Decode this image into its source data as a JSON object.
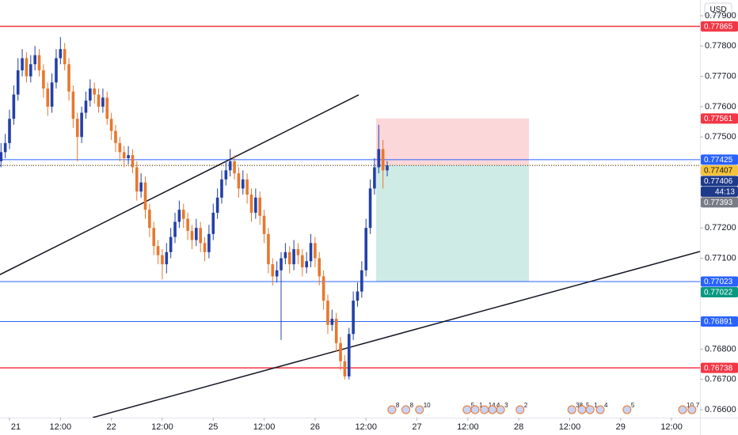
{
  "chart_data": {
    "type": "candlestick",
    "currency": "USD",
    "up_color": "#2340a8",
    "down_color": "#e8772e",
    "x": [
      -2,
      -1,
      0,
      1,
      2,
      3,
      4,
      5,
      6,
      7,
      8,
      9,
      10,
      11,
      12,
      13,
      14,
      15,
      16,
      17,
      18,
      19,
      20,
      21,
      22,
      23,
      24,
      25,
      26,
      27,
      28,
      29,
      30,
      31,
      32,
      33,
      34,
      35,
      36,
      37,
      38,
      39,
      40,
      41,
      42,
      43,
      44,
      45,
      46,
      47,
      48,
      49,
      50,
      51,
      52,
      53,
      54,
      55,
      56,
      57,
      58,
      59,
      60,
      61,
      62,
      63,
      64,
      65,
      66,
      67,
      68,
      69,
      70,
      71,
      72,
      73,
      74,
      75,
      76,
      77,
      78,
      79,
      80,
      81,
      82,
      83,
      84,
      85,
      86,
      87,
      88,
      89
    ],
    "open": [
      0.7742,
      0.7745,
      0.7748,
      0.7756,
      0.7764,
      0.7772,
      0.7776,
      0.777,
      0.7774,
      0.7777,
      0.7772,
      0.7766,
      0.776,
      0.7768,
      0.7776,
      0.7779,
      0.7774,
      0.7765,
      0.7756,
      0.775,
      0.7758,
      0.7762,
      0.7766,
      0.7764,
      0.776,
      0.7763,
      0.7756,
      0.7752,
      0.7748,
      0.7745,
      0.7743,
      0.7744,
      0.774,
      0.7732,
      0.7735,
      0.7726,
      0.772,
      0.7714,
      0.7711,
      0.7708,
      0.7712,
      0.7717,
      0.7722,
      0.7726,
      0.7723,
      0.7719,
      0.7716,
      0.772,
      0.7715,
      0.7712,
      0.7718,
      0.7725,
      0.773,
      0.7736,
      0.7739,
      0.7742,
      0.7738,
      0.7733,
      0.7736,
      0.7731,
      0.7725,
      0.773,
      0.7724,
      0.7718,
      0.7708,
      0.7704,
      0.7706,
      0.771,
      0.7712,
      0.7708,
      0.7713,
      0.7711,
      0.7707,
      0.7709,
      0.7715,
      0.771,
      0.7704,
      0.7696,
      0.7688,
      0.769,
      0.7682,
      0.7676,
      0.7671,
      0.7685,
      0.7696,
      0.7699,
      0.7706,
      0.772,
      0.7733,
      0.774,
      0.7746,
      0.7739
    ],
    "high": [
      0.7748,
      0.7751,
      0.7759,
      0.7767,
      0.7776,
      0.7779,
      0.7778,
      0.7777,
      0.778,
      0.7779,
      0.7774,
      0.7768,
      0.7771,
      0.7779,
      0.7783,
      0.7781,
      0.7776,
      0.7767,
      0.7758,
      0.776,
      0.7765,
      0.7769,
      0.7768,
      0.7766,
      0.7766,
      0.7765,
      0.7758,
      0.7754,
      0.775,
      0.7747,
      0.7747,
      0.7746,
      0.7742,
      0.7738,
      0.7737,
      0.7728,
      0.7722,
      0.7716,
      0.7713,
      0.7715,
      0.772,
      0.7725,
      0.7729,
      0.7728,
      0.7725,
      0.7721,
      0.7723,
      0.7722,
      0.7717,
      0.7721,
      0.7728,
      0.7733,
      0.7739,
      0.7742,
      0.7746,
      0.7744,
      0.774,
      0.7739,
      0.7738,
      0.7733,
      0.7733,
      0.7732,
      0.7726,
      0.772,
      0.771,
      0.7709,
      0.7712,
      0.7715,
      0.7714,
      0.7716,
      0.7715,
      0.7713,
      0.7712,
      0.7718,
      0.7717,
      0.7712,
      0.7706,
      0.7698,
      0.7693,
      0.7692,
      0.7684,
      0.7678,
      0.7687,
      0.7699,
      0.7702,
      0.7709,
      0.7723,
      0.7736,
      0.7743,
      0.7754,
      0.7749,
      0.7742
    ],
    "low": [
      0.774,
      0.7743,
      0.7746,
      0.7754,
      0.7762,
      0.777,
      0.7768,
      0.7768,
      0.7772,
      0.777,
      0.7763,
      0.7757,
      0.7758,
      0.7766,
      0.7774,
      0.7772,
      0.7762,
      0.7753,
      0.7742,
      0.7748,
      0.7756,
      0.776,
      0.7761,
      0.7758,
      0.7758,
      0.7754,
      0.7749,
      0.7745,
      0.7742,
      0.774,
      0.7741,
      0.7738,
      0.7729,
      0.773,
      0.7723,
      0.7717,
      0.7711,
      0.7708,
      0.7703,
      0.7705,
      0.771,
      0.7715,
      0.772,
      0.772,
      0.7716,
      0.7713,
      0.7714,
      0.7712,
      0.7709,
      0.771,
      0.7716,
      0.7723,
      0.7728,
      0.7734,
      0.7737,
      0.7736,
      0.773,
      0.7731,
      0.7728,
      0.7722,
      0.7723,
      0.7721,
      0.7715,
      0.7705,
      0.7701,
      0.7702,
      0.7683,
      0.7708,
      0.7705,
      0.7706,
      0.7708,
      0.7704,
      0.7705,
      0.7707,
      0.7707,
      0.7701,
      0.7693,
      0.7685,
      0.7686,
      0.7679,
      0.7673,
      0.767,
      0.767,
      0.7683,
      0.7694,
      0.7697,
      0.7704,
      0.7718,
      0.7731,
      0.7738,
      0.7733,
      0.7737
    ],
    "close": [
      0.7745,
      0.7748,
      0.7756,
      0.7764,
      0.7772,
      0.7776,
      0.777,
      0.7774,
      0.7777,
      0.7772,
      0.7766,
      0.776,
      0.7768,
      0.7776,
      0.7779,
      0.7774,
      0.7765,
      0.7756,
      0.775,
      0.7758,
      0.7762,
      0.7766,
      0.7764,
      0.776,
      0.7763,
      0.7756,
      0.7752,
      0.7748,
      0.7745,
      0.7743,
      0.7744,
      0.774,
      0.7732,
      0.7735,
      0.7726,
      0.772,
      0.7714,
      0.7711,
      0.7708,
      0.7712,
      0.7717,
      0.7722,
      0.7726,
      0.7723,
      0.7719,
      0.7716,
      0.772,
      0.7715,
      0.7712,
      0.7718,
      0.7725,
      0.773,
      0.7736,
      0.7739,
      0.7742,
      0.7738,
      0.7733,
      0.7736,
      0.7731,
      0.7725,
      0.773,
      0.7724,
      0.7718,
      0.7708,
      0.7704,
      0.7706,
      0.771,
      0.7712,
      0.7708,
      0.7713,
      0.7711,
      0.7707,
      0.7709,
      0.7715,
      0.771,
      0.7704,
      0.7696,
      0.7688,
      0.769,
      0.7682,
      0.7676,
      0.7671,
      0.7685,
      0.7696,
      0.7699,
      0.7706,
      0.772,
      0.7733,
      0.774,
      0.7746,
      0.7739,
      0.77406
    ],
    "xlim": [
      -2.24,
      162.7
    ],
    "ylim": [
      0.76574,
      0.77952
    ],
    "xticks": [
      {
        "value": 0,
        "label": "21"
      },
      {
        "value": 12,
        "label": "12:00"
      },
      {
        "value": 24,
        "label": "22"
      },
      {
        "value": 36,
        "label": "12:00"
      },
      {
        "value": 48,
        "label": "25"
      },
      {
        "value": 60,
        "label": "12:00"
      },
      {
        "value": 72,
        "label": "26"
      },
      {
        "value": 84,
        "label": "12:00"
      },
      {
        "value": 96,
        "label": "27"
      },
      {
        "value": 108,
        "label": "12:00"
      },
      {
        "value": 120,
        "label": "28"
      },
      {
        "value": 132,
        "label": "12:00"
      },
      {
        "value": 144,
        "label": "29"
      },
      {
        "value": 156,
        "label": "12:00"
      }
    ],
    "yticks": [
      {
        "value": 0.779,
        "label": "0.77900"
      },
      {
        "value": 0.778,
        "label": "0.77800"
      },
      {
        "value": 0.777,
        "label": "0.77700"
      },
      {
        "value": 0.776,
        "label": "0.77600"
      },
      {
        "value": 0.775,
        "label": "0.77500"
      },
      {
        "value": 0.772,
        "label": "0.77200"
      },
      {
        "value": 0.771,
        "label": "0.77100"
      },
      {
        "value": 0.768,
        "label": "0.76800"
      },
      {
        "value": 0.767,
        "label": "0.76700"
      },
      {
        "value": 0.766,
        "label": "0.76600"
      }
    ],
    "hlines": [
      {
        "value": 0.77865,
        "color": "#f23645"
      },
      {
        "value": 0.77425,
        "color": "#2962ff"
      },
      {
        "value": 0.77023,
        "color": "#2962ff"
      },
      {
        "value": 0.76891,
        "color": "#2962ff"
      },
      {
        "value": 0.76738,
        "color": "#f23645"
      }
    ],
    "position": {
      "x": [
        86.4,
        122.4
      ],
      "entry": 0.77407,
      "stop": 0.77561,
      "target": 0.77022,
      "entry_color": "#f5c33b",
      "stop_color": "#f23645",
      "target_color": "#089981"
    },
    "current_color": "#1e3a8a",
    "countdown": "44:13",
    "extra_labels": [
      {
        "value": 0.77393,
        "color": "#787b86"
      }
    ],
    "trendlines": [
      {
        "x": [
          -2.24,
          82.28
        ],
        "y": [
          0.77046,
          0.77639
        ]
      },
      {
        "x": [
          19.59,
          162.69
        ],
        "y": [
          0.76574,
          0.77122
        ]
      }
    ],
    "events": [
      {
        "x": 90.1,
        "text": "8"
      },
      {
        "x": 93.4,
        "text": "8"
      },
      {
        "x": 96.6,
        "text": "10"
      },
      {
        "x": 107.8,
        "text": "5"
      },
      {
        "x": 109.7,
        "text": "1"
      },
      {
        "x": 111.9,
        "text": "14"
      },
      {
        "x": 113.8,
        "text": "4"
      },
      {
        "x": 115.7,
        "text": "3"
      },
      {
        "x": 120.3,
        "text": "2"
      },
      {
        "x": 132.5,
        "text": "38"
      },
      {
        "x": 134.9,
        "text": "5"
      },
      {
        "x": 136.8,
        "text": "1"
      },
      {
        "x": 139.2,
        "text": "4"
      },
      {
        "x": 145.5,
        "text": "5"
      },
      {
        "x": 158.6,
        "text": "10"
      },
      {
        "x": 160.8,
        "text": "7"
      }
    ]
  }
}
